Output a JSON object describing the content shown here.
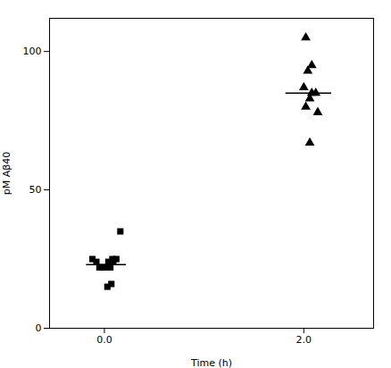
{
  "chart_data": {
    "type": "scatter",
    "xlabel": "Time (h)",
    "ylabel": "pM Aβ40",
    "xlim": [
      -0.55,
      2.7
    ],
    "ylim": [
      0,
      112
    ],
    "xticks": [
      0,
      2
    ],
    "yticks": [
      0,
      50,
      100
    ],
    "grid": false,
    "series": [
      {
        "marker": "square",
        "color": "black",
        "x": [
          -0.12,
          -0.08,
          -0.05,
          -0.02,
          0.01,
          0.04,
          0.08,
          0.12,
          0.16,
          0.06,
          0.09,
          0.03,
          0.07
        ],
        "values": [
          25,
          24,
          22,
          22,
          22,
          24,
          25,
          25,
          35,
          22,
          24,
          15,
          16
        ]
      },
      {
        "marker": "triangle",
        "color": "black",
        "x": [
          2.02,
          2.08,
          2.04,
          2.0,
          2.12,
          2.06,
          2.02,
          2.08,
          2.14,
          2.06
        ],
        "values": [
          105,
          95,
          93,
          87,
          85,
          83,
          80,
          85,
          78,
          67
        ]
      }
    ],
    "mean_lines": [
      {
        "y": 85,
        "x_start": 1.82,
        "x_end": 2.28,
        "color": "black"
      },
      {
        "y": 23,
        "x_start": -0.18,
        "x_end": 0.22,
        "color": "black"
      }
    ]
  }
}
